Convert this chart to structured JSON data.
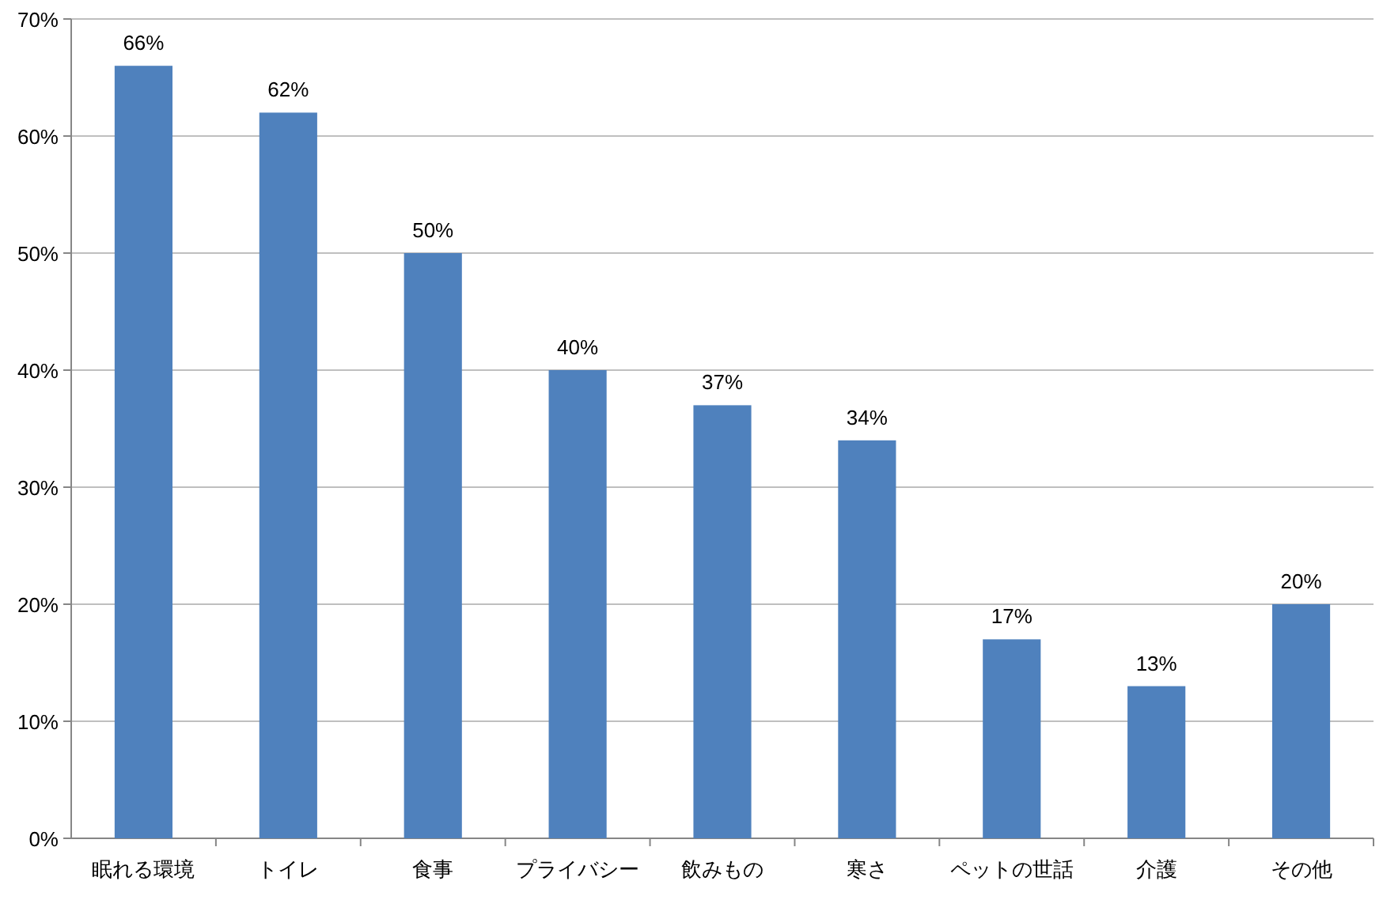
{
  "chart_data": {
    "type": "bar",
    "categories": [
      "眠れる環境",
      "トイレ",
      "食事",
      "プライバシー",
      "飲みもの",
      "寒さ",
      "ペットの世話",
      "介護",
      "その他"
    ],
    "values": [
      66,
      62,
      50,
      40,
      37,
      34,
      17,
      13,
      20
    ],
    "value_labels": [
      "66%",
      "62%",
      "50%",
      "40%",
      "37%",
      "34%",
      "17%",
      "13%",
      "20%"
    ],
    "color": "#4f81bd",
    "ylim": [
      0,
      70
    ],
    "yticks": [
      {
        "value": 0,
        "label": "0%"
      },
      {
        "value": 10,
        "label": "10%"
      },
      {
        "value": 20,
        "label": "20%"
      },
      {
        "value": 30,
        "label": "30%"
      },
      {
        "value": 40,
        "label": "40%"
      },
      {
        "value": 50,
        "label": "50%"
      },
      {
        "value": 60,
        "label": "60%"
      },
      {
        "value": 70,
        "label": "70%"
      }
    ],
    "grid": "y"
  }
}
